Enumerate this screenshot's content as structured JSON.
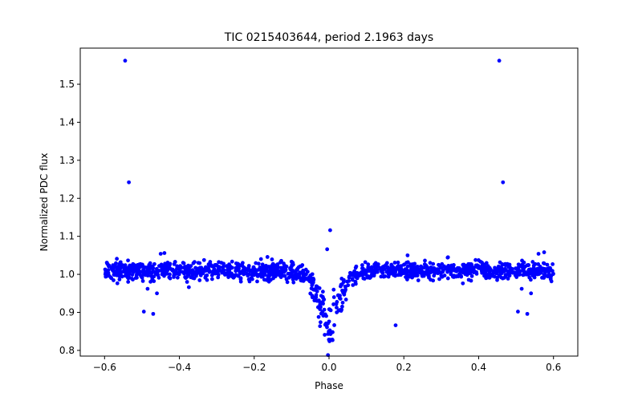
{
  "chart_data": {
    "type": "scatter",
    "title": "TIC 0215403644, period 2.1963 days",
    "xlabel": "Phase",
    "ylabel": "Normalized PDC flux",
    "xlim": [
      -0.665,
      0.665
    ],
    "ylim": [
      0.785,
      1.595
    ],
    "xticks": [
      -0.6,
      -0.4,
      -0.2,
      0.0,
      0.2,
      0.4,
      0.6
    ],
    "xtick_labels": [
      "−0.6",
      "−0.4",
      "−0.2",
      "0.0",
      "0.2",
      "0.4",
      "0.6"
    ],
    "yticks": [
      0.8,
      0.9,
      1.0,
      1.1,
      1.2,
      1.3,
      1.4,
      1.5
    ],
    "ytick_labels": [
      "0.8",
      "0.9",
      "1.0",
      "1.1",
      "1.2",
      "1.3",
      "1.4",
      "1.5"
    ],
    "grid": false,
    "marker_color": "#0000ff",
    "series": [
      {
        "name": "flux",
        "description": "Phase-folded light curve; baseline near 1.00 with ~0.02 scatter, transit dip centered at phase 0.0 reaching ~0.81, secondary shallow dip region near phase 0.0 to 0.96",
        "x_range": [
          -0.6,
          0.6
        ],
        "baseline": 1.01,
        "scatter": 0.012,
        "n_points": 1400,
        "transit_center": 0.0,
        "transit_width": 0.06,
        "transit_depth_min": 0.805,
        "outliers": [
          {
            "x": -0.545,
            "y": 1.562
          },
          {
            "x": 0.455,
            "y": 1.562
          },
          {
            "x": -0.535,
            "y": 1.242
          },
          {
            "x": 0.465,
            "y": 1.242
          },
          {
            "x": 0.003,
            "y": 1.116
          },
          {
            "x": -0.005,
            "y": 1.066
          },
          {
            "x": 0.178,
            "y": 0.866
          },
          {
            "x": -0.495,
            "y": 0.902
          },
          {
            "x": 0.505,
            "y": 0.902
          },
          {
            "x": -0.47,
            "y": 0.896
          },
          {
            "x": 0.53,
            "y": 0.896
          },
          {
            "x": -0.485,
            "y": 0.962
          },
          {
            "x": 0.515,
            "y": 0.962
          },
          {
            "x": -0.46,
            "y": 0.95
          },
          {
            "x": 0.54,
            "y": 0.95
          },
          {
            "x": -0.45,
            "y": 1.054
          },
          {
            "x": -0.44,
            "y": 1.056
          },
          {
            "x": 0.56,
            "y": 1.054
          },
          {
            "x": 0.575,
            "y": 1.058
          },
          {
            "x": 0.21,
            "y": 1.05
          }
        ]
      }
    ]
  }
}
